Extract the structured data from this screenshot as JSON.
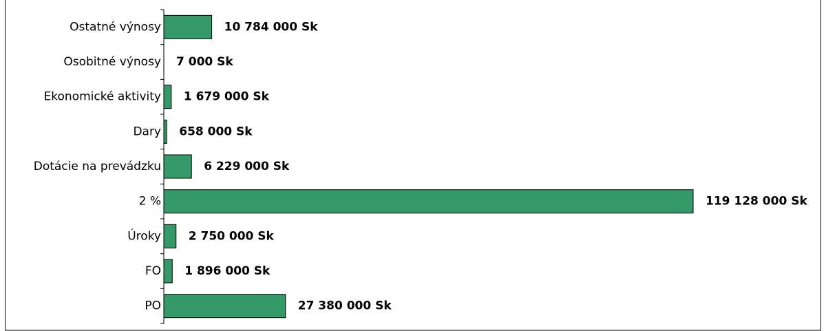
{
  "chart_data": {
    "type": "barh",
    "categories": [
      "Ostatné výnosy",
      "Osobitné výnosy",
      "Ekonomické aktivity",
      "Dary",
      "Dotácie na prevádzku",
      "2 %",
      "Úroky",
      "FO",
      "PO"
    ],
    "values": [
      10784000,
      7000,
      1679000,
      658000,
      6229000,
      119128000,
      2750000,
      1896000,
      27380000
    ],
    "value_labels": [
      "10 784 000 Sk",
      "7 000 Sk",
      "1 679 000 Sk",
      "658 000 Sk",
      "6 229 000 Sk",
      "119 128 000 Sk",
      "2 750 000 Sk",
      "1 896 000 Sk",
      "27 380 000 Sk"
    ],
    "color": "#339966"
  }
}
